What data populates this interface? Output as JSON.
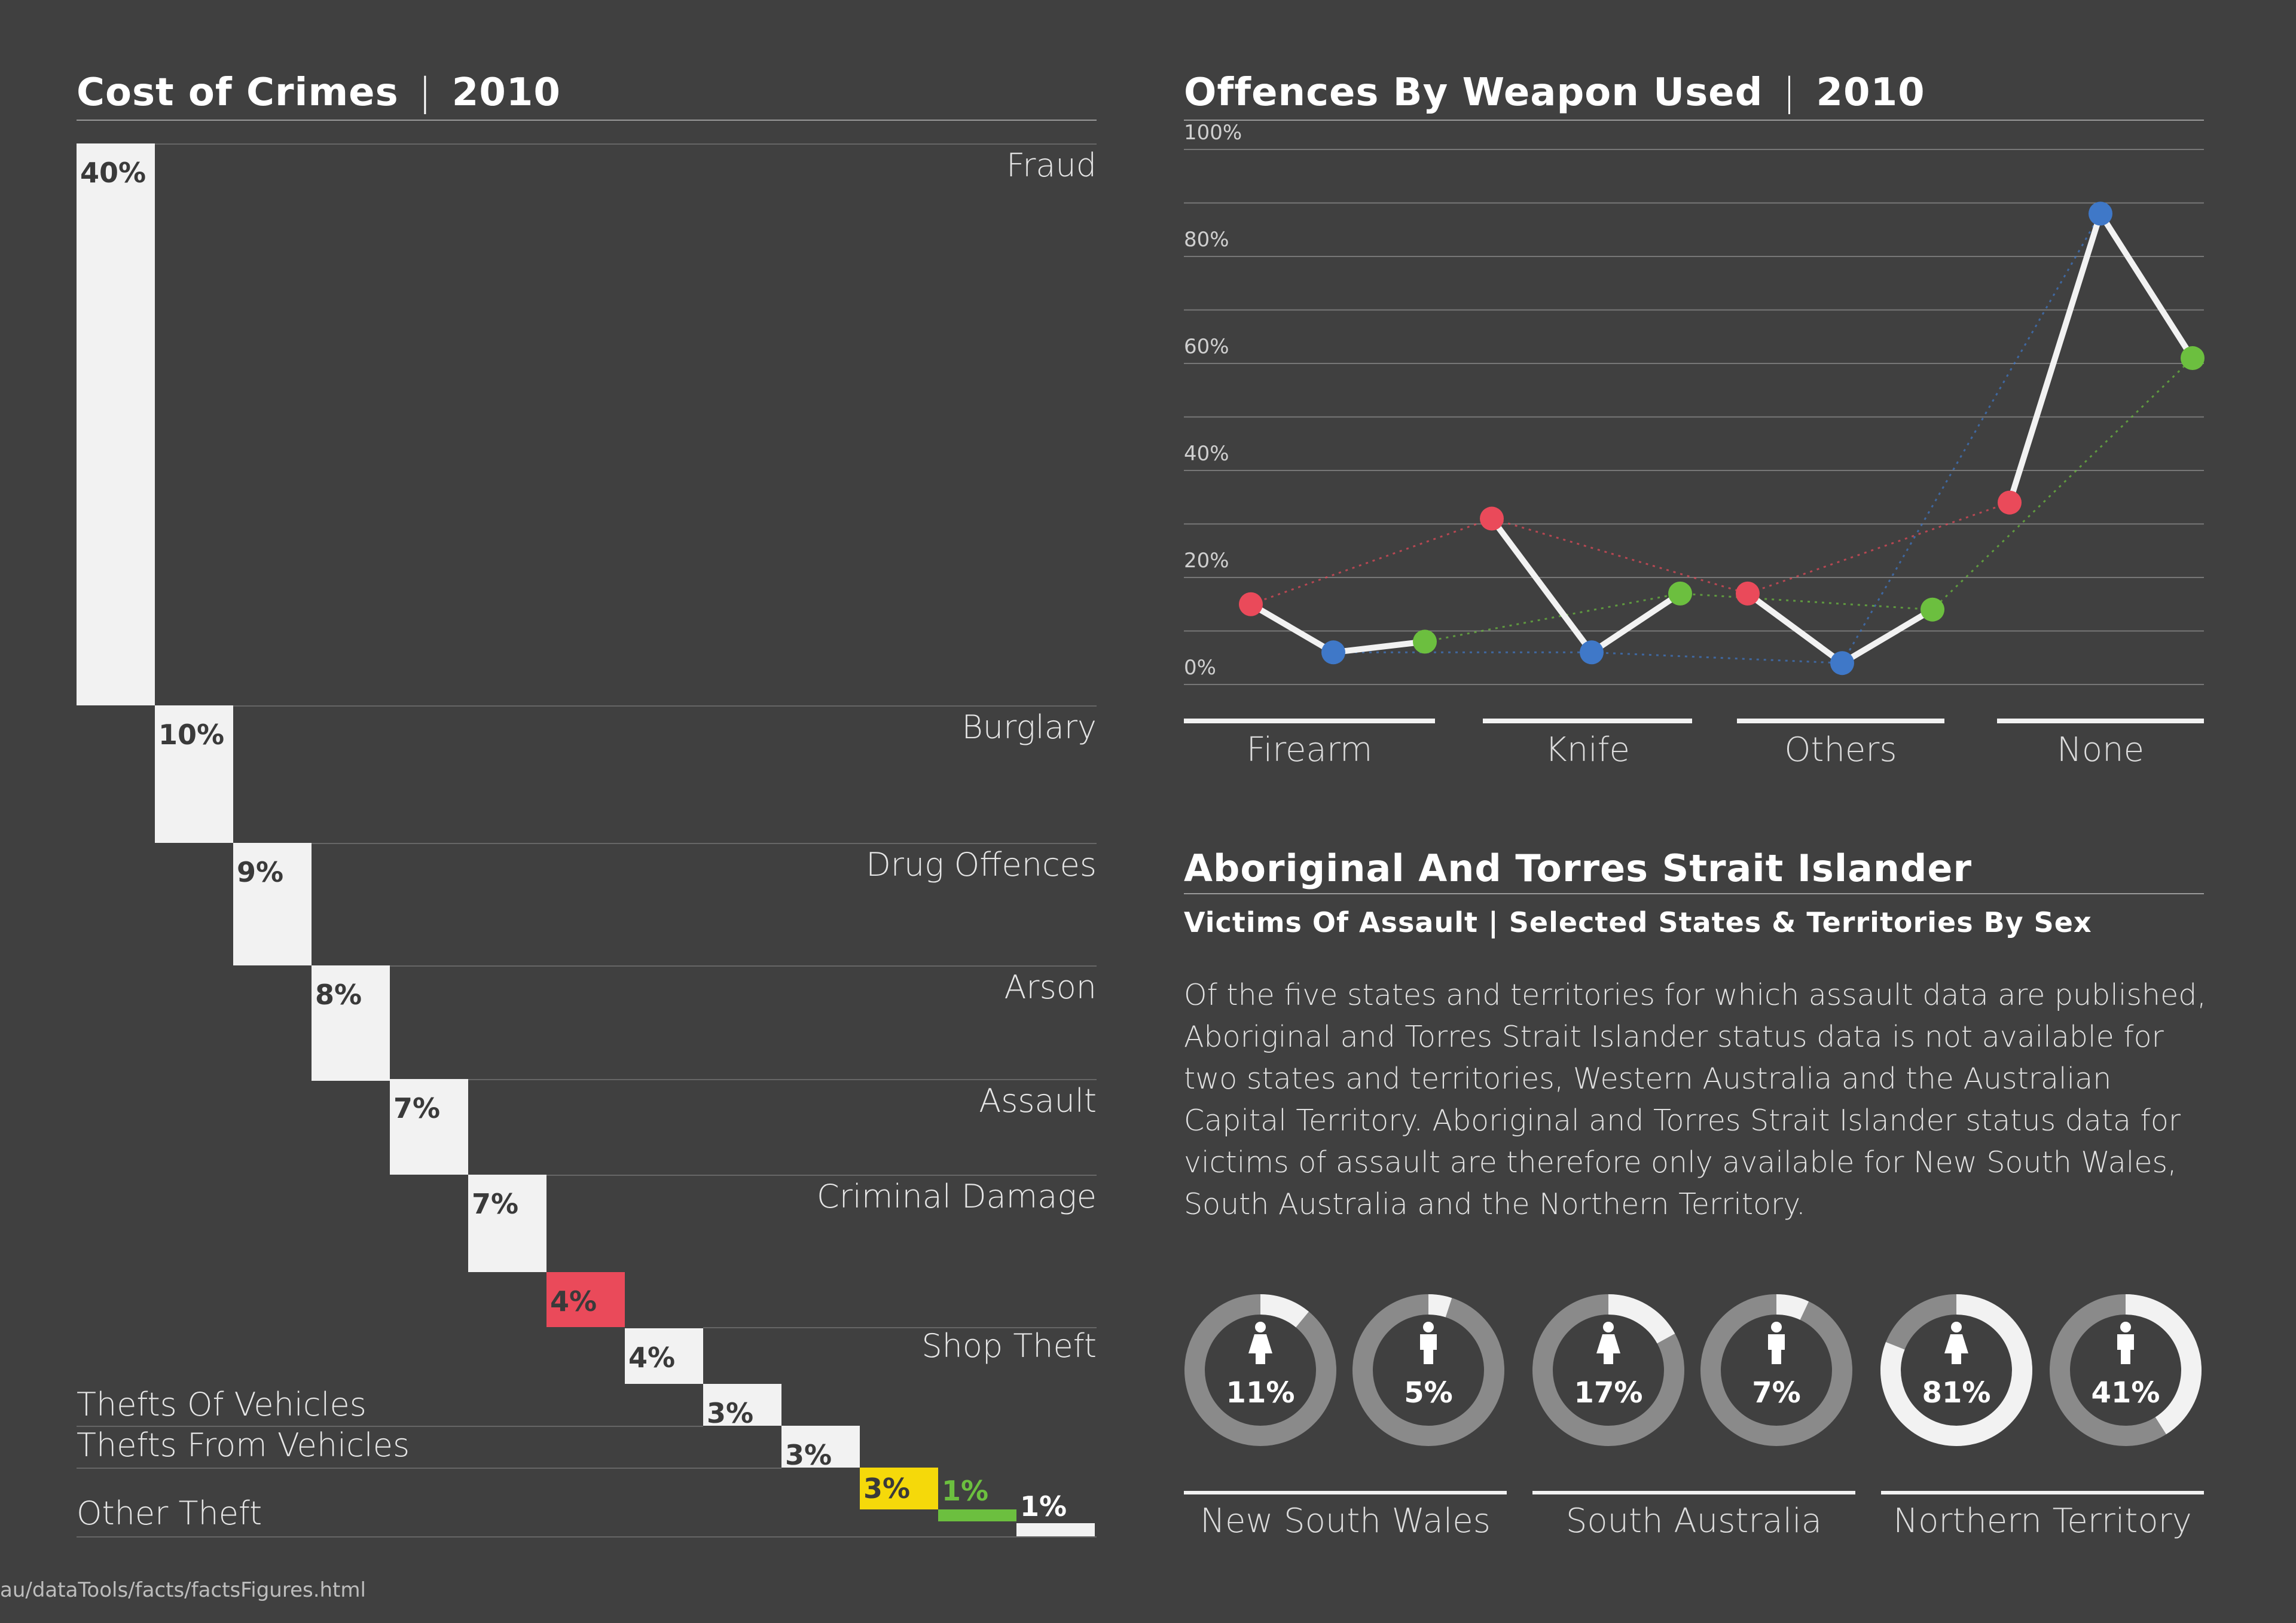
{
  "cost": {
    "title_main": "Cost of Crimes",
    "title_year": "2010",
    "items": [
      {
        "label": "Fraud",
        "value": 40,
        "text": "40%",
        "color": "#f2f2f2"
      },
      {
        "label": "Burglary",
        "value": 10,
        "text": "10%",
        "color": "#f2f2f2"
      },
      {
        "label": "Drug Offences",
        "value": 9,
        "text": "9%",
        "color": "#f2f2f2"
      },
      {
        "label": "Arson",
        "value": 8,
        "text": "8%",
        "color": "#f2f2f2"
      },
      {
        "label": "Assault",
        "value": 7,
        "text": "7%",
        "color": "#f2f2f2"
      },
      {
        "label": "Criminal Damage",
        "value": 7,
        "text": "7%",
        "color": "#f2f2f2"
      },
      {
        "label": "",
        "value": 4,
        "text": "4%",
        "color": "#ea4a5a"
      },
      {
        "label": "Shop Theft",
        "value": 4,
        "text": "4%",
        "color": "#f2f2f2"
      },
      {
        "label": "Thefts Of Vehicles",
        "value": 3,
        "text": "3%",
        "color": "#f2f2f2"
      },
      {
        "label": "Thefts From Vehicles",
        "value": 3,
        "text": "3%",
        "color": "#f2f2f2"
      },
      {
        "label": "",
        "value": 3,
        "text": "3%",
        "color": "#f5d90a"
      },
      {
        "label": "",
        "value": 1,
        "text": "1%",
        "color": "#6cbf3f"
      },
      {
        "label": "Other Theft",
        "value": 1,
        "text": "1%",
        "color": "#f2f2f2"
      }
    ],
    "source": "au/dataTools/facts/factsFigures.html"
  },
  "weapon": {
    "title_main": "Offences By Weapon Used",
    "title_year": "2010",
    "y_ticks": [
      "100%",
      "80%",
      "60%",
      "40%",
      "20%",
      "0%"
    ]
  },
  "aboriginal": {
    "title": "Aboriginal And Torres Strait Islander",
    "subtitle": "Victims Of Assault | Selected States & Territories By Sex",
    "paragraph": "Of the five states and territories for which assault data are published, Aboriginal and Torres Strait Islander status data is not available for two states and territories, Western Australia and the Australian Capital Territory. Aboriginal and Torres Strait Islander status data for victims of assault are therefore only available for New South Wales, South Australia and the Northern Territory."
  },
  "chart_data": [
    {
      "type": "bar",
      "title": "Cost of Crimes | 2010",
      "categories": [
        "Fraud",
        "Burglary",
        "Drug Offences",
        "Arson",
        "Assault",
        "Criminal Damage",
        "",
        "Shop Theft",
        "Thefts Of Vehicles",
        "Thefts From Vehicles",
        "",
        "",
        "Other Theft"
      ],
      "values": [
        40,
        10,
        9,
        8,
        7,
        7,
        4,
        4,
        3,
        3,
        3,
        1,
        1
      ]
    },
    {
      "type": "line",
      "title": "Offences By Weapon Used | 2010",
      "categories": [
        "Firearm",
        "Knife",
        "Others",
        "None"
      ],
      "ylim": [
        0,
        100
      ],
      "series": [
        {
          "color": "#ea4a5a",
          "values": [
            15,
            31,
            17,
            34
          ]
        },
        {
          "color": "#3f78c8",
          "values": [
            6,
            6,
            4,
            88
          ]
        },
        {
          "color": "#6cbf3f",
          "values": [
            8,
            17,
            14,
            61
          ]
        }
      ]
    },
    {
      "type": "pie",
      "title": "Victims Of Assault | Selected States & Territories By Sex",
      "regions": [
        "New South Wales",
        "South Australia",
        "Northern Territory"
      ],
      "items": [
        {
          "region": "New South Wales",
          "sex": "female",
          "value": 11,
          "text": "11%"
        },
        {
          "region": "New South Wales",
          "sex": "male",
          "value": 5,
          "text": "5%"
        },
        {
          "region": "South Australia",
          "sex": "female",
          "value": 17,
          "text": "17%"
        },
        {
          "region": "South Australia",
          "sex": "male",
          "value": 7,
          "text": "7%"
        },
        {
          "region": "Northern Territory",
          "sex": "female",
          "value": 81,
          "text": "81%"
        },
        {
          "region": "Northern Territory",
          "sex": "male",
          "value": 41,
          "text": "41%"
        }
      ]
    }
  ]
}
